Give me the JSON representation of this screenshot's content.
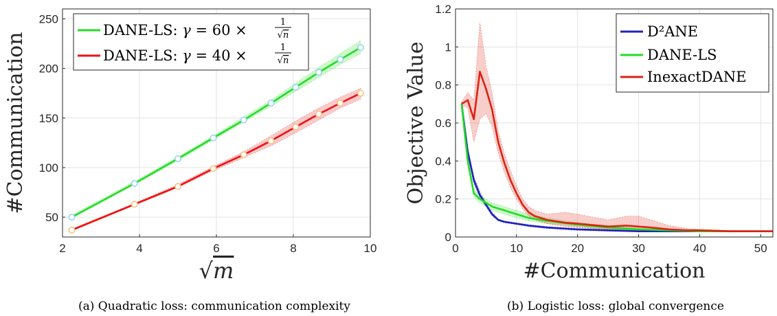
{
  "chart_data": [
    {
      "type": "line",
      "xlabel": "√m",
      "ylabel": "#Communication",
      "xlim": [
        2,
        10
      ],
      "ylim": [
        30,
        260
      ],
      "xticks": [
        2,
        4,
        6,
        8,
        10
      ],
      "yticks": [
        50,
        100,
        150,
        200,
        250
      ],
      "grid": true,
      "legend": "top-left",
      "x": [
        2.24,
        3.87,
        5.0,
        5.92,
        6.71,
        7.42,
        8.06,
        8.66,
        9.22,
        9.75
      ],
      "series": [
        {
          "name": "DANE-LS: γ = 60 × 1/√n",
          "legend_prefix": "DANE-LS: ",
          "color": "#22dd22",
          "marker_color": "#8fd3f0",
          "values": [
            50,
            84,
            109,
            130,
            148,
            165,
            181,
            196,
            209,
            221
          ],
          "lower": [
            49,
            83,
            107,
            128,
            146,
            162,
            177,
            191,
            204,
            215
          ],
          "upper": [
            52,
            86,
            111,
            132,
            151,
            168,
            185,
            201,
            215,
            228
          ]
        },
        {
          "name": "DANE-LS: γ = 40 × 1/√n",
          "legend_prefix": "DANE-LS: ",
          "color": "#ee1111",
          "marker_color": "#f5c27a",
          "values": [
            37,
            63,
            81,
            99,
            113,
            127,
            141,
            154,
            165,
            175
          ],
          "lower": [
            36,
            62,
            80,
            97,
            110,
            122,
            135,
            148,
            160,
            169
          ],
          "upper": [
            38,
            64,
            83,
            101,
            116,
            132,
            147,
            160,
            171,
            180
          ]
        }
      ],
      "caption": "(a) Quadratic loss: communication complexity"
    },
    {
      "type": "line",
      "xlabel": "#Communication",
      "ylabel": "Objective Value",
      "xlim": [
        0,
        52
      ],
      "ylim": [
        0,
        1.2
      ],
      "xticks": [
        0,
        10,
        20,
        30,
        40,
        50
      ],
      "yticks": [
        0,
        0.2,
        0.4,
        0.6,
        0.8,
        1,
        1.2
      ],
      "grid": true,
      "legend": "top-right",
      "series": [
        {
          "name": "D²ANE",
          "color": "#2222bb",
          "x": [
            1,
            2,
            3,
            4,
            5,
            6,
            7,
            8,
            10,
            12,
            15,
            20,
            25,
            30,
            35,
            40,
            45,
            50,
            52
          ],
          "values": [
            0.7,
            0.45,
            0.3,
            0.22,
            0.17,
            0.12,
            0.09,
            0.08,
            0.07,
            0.06,
            0.05,
            0.04,
            0.035,
            0.03,
            0.03,
            0.03,
            0.03,
            0.03,
            0.03
          ],
          "lower": [
            0.69,
            0.43,
            0.28,
            0.21,
            0.16,
            0.11,
            0.085,
            0.075,
            0.065,
            0.055,
            0.045,
            0.035,
            0.03,
            0.028,
            0.028,
            0.028,
            0.028,
            0.028,
            0.028
          ],
          "upper": [
            0.71,
            0.47,
            0.32,
            0.24,
            0.18,
            0.13,
            0.095,
            0.085,
            0.075,
            0.065,
            0.055,
            0.045,
            0.04,
            0.035,
            0.033,
            0.033,
            0.033,
            0.033,
            0.033
          ]
        },
        {
          "name": "DANE-LS",
          "color": "#22dd22",
          "x": [
            1,
            2,
            3,
            4,
            5,
            6,
            7,
            8,
            10,
            12,
            15,
            20,
            25,
            30,
            35,
            40,
            45,
            50,
            52
          ],
          "values": [
            0.7,
            0.4,
            0.23,
            0.2,
            0.18,
            0.16,
            0.15,
            0.14,
            0.12,
            0.1,
            0.085,
            0.065,
            0.05,
            0.04,
            0.035,
            0.03,
            0.03,
            0.03,
            0.03
          ],
          "lower": [
            0.69,
            0.38,
            0.21,
            0.18,
            0.16,
            0.14,
            0.13,
            0.12,
            0.1,
            0.085,
            0.07,
            0.055,
            0.04,
            0.035,
            0.03,
            0.028,
            0.028,
            0.028,
            0.028
          ],
          "upper": [
            0.71,
            0.42,
            0.25,
            0.22,
            0.2,
            0.18,
            0.17,
            0.16,
            0.14,
            0.12,
            0.1,
            0.075,
            0.06,
            0.045,
            0.04,
            0.033,
            0.033,
            0.033,
            0.033
          ]
        },
        {
          "name": "InexactDANE",
          "color": "#dd2211",
          "x": [
            1,
            2,
            3,
            4,
            5,
            6,
            7,
            8,
            9,
            10,
            11,
            12,
            13,
            15,
            18,
            20,
            25,
            28,
            30,
            32,
            35,
            38,
            40,
            45,
            50,
            52
          ],
          "values": [
            0.7,
            0.72,
            0.62,
            0.87,
            0.78,
            0.67,
            0.5,
            0.39,
            0.3,
            0.23,
            0.17,
            0.13,
            0.11,
            0.09,
            0.075,
            0.07,
            0.055,
            0.06,
            0.055,
            0.05,
            0.04,
            0.035,
            0.035,
            0.03,
            0.03,
            0.03
          ],
          "lower": [
            0.69,
            0.68,
            0.5,
            0.62,
            0.65,
            0.58,
            0.44,
            0.34,
            0.26,
            0.2,
            0.15,
            0.11,
            0.09,
            0.07,
            0.055,
            0.05,
            0.04,
            0.035,
            0.03,
            0.03,
            0.03,
            0.03,
            0.03,
            0.028,
            0.028,
            0.028
          ],
          "upper": [
            0.71,
            0.76,
            0.72,
            1.13,
            0.9,
            0.76,
            0.56,
            0.44,
            0.35,
            0.27,
            0.2,
            0.16,
            0.14,
            0.12,
            0.13,
            0.12,
            0.09,
            0.11,
            0.11,
            0.09,
            0.06,
            0.045,
            0.04,
            0.035,
            0.033,
            0.033
          ]
        }
      ],
      "caption": "(b) Logistic loss: global convergence"
    }
  ]
}
